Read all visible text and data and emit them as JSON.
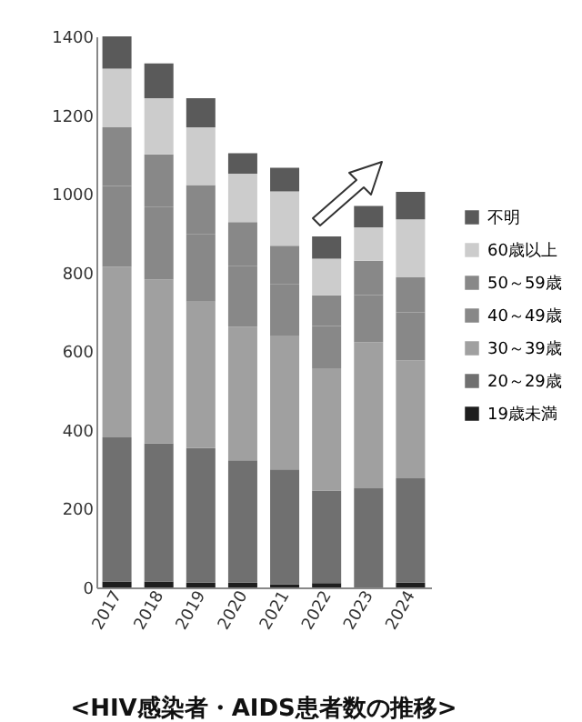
{
  "chart_data": {
    "type": "bar",
    "stacked": true,
    "title": "<HIV感染者・AIDS患者数の推移>",
    "categories": [
      "2017",
      "2018",
      "2019",
      "2020",
      "2021",
      "2022",
      "2023",
      "2024"
    ],
    "series": [
      {
        "name": "19歳未満",
        "color": "#1e1e1e",
        "values": [
          15,
          15,
          12,
          12,
          8,
          11,
          0,
          12
        ]
      },
      {
        "name": "20～29歳",
        "color": "#707070",
        "values": [
          366,
          351,
          342,
          311,
          292,
          235,
          252,
          265
        ]
      },
      {
        "name": "30～39歳",
        "color": "#a0a0a0",
        "values": [
          434,
          416,
          372,
          339,
          338,
          311,
          371,
          300
        ]
      },
      {
        "name": "40～49歳",
        "color": "#888888",
        "values": [
          205,
          184,
          172,
          154,
          133,
          107,
          120,
          122
        ]
      },
      {
        "name": "50～59歳",
        "color": "#888888",
        "values": [
          149,
          134,
          124,
          112,
          97,
          78,
          87,
          89
        ]
      },
      {
        "name": "60歳以上",
        "color": "#cccccc",
        "values": [
          149,
          143,
          147,
          123,
          138,
          93,
          85,
          147
        ]
      },
      {
        "name": "不明",
        "color": "#5a5a5a",
        "values": [
          82,
          88,
          74,
          52,
          60,
          57,
          54,
          70
        ]
      }
    ],
    "ylim": [
      0,
      1400
    ],
    "yticks": [
      0,
      200,
      400,
      600,
      800,
      1000,
      1200,
      1400
    ],
    "grid": false,
    "legend": "right"
  }
}
